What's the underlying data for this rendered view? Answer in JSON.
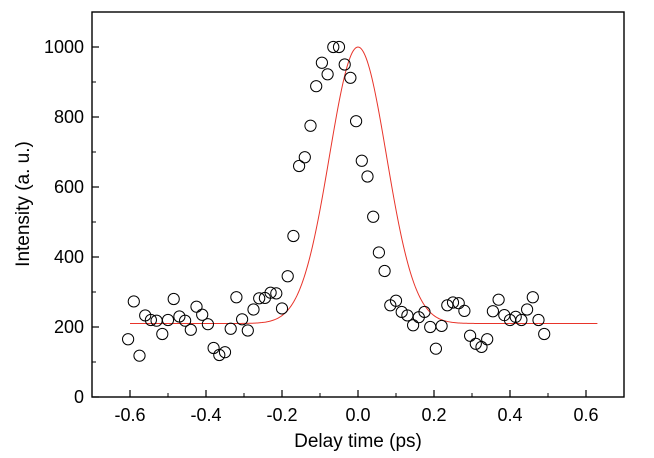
{
  "chart_data": {
    "type": "scatter",
    "xlabel": "Delay time (ps)",
    "ylabel": "Intensity (a. u.)",
    "xlim": [
      -0.7,
      0.7
    ],
    "ylim": [
      0,
      1100
    ],
    "x_ticks": [
      -0.6,
      -0.4,
      -0.2,
      0.0,
      0.2,
      0.4,
      0.6
    ],
    "x_tick_labels": [
      "-0.6",
      "-0.4",
      "-0.2",
      "0.0",
      "0.2",
      "0.4",
      "0.6"
    ],
    "y_ticks": [
      0,
      200,
      400,
      600,
      800,
      1000
    ],
    "y_tick_labels": [
      "0",
      "200",
      "400",
      "600",
      "800",
      "1000"
    ],
    "grid": false,
    "series": [
      {
        "marker": "open-circle",
        "color": "#000000",
        "points": [
          [
            -0.605,
            165
          ],
          [
            -0.59,
            273
          ],
          [
            -0.575,
            118
          ],
          [
            -0.56,
            233
          ],
          [
            -0.545,
            220
          ],
          [
            -0.53,
            218
          ],
          [
            -0.515,
            180
          ],
          [
            -0.5,
            220
          ],
          [
            -0.485,
            280
          ],
          [
            -0.47,
            230
          ],
          [
            -0.455,
            218
          ],
          [
            -0.44,
            192
          ],
          [
            -0.425,
            258
          ],
          [
            -0.41,
            235
          ],
          [
            -0.395,
            208
          ],
          [
            -0.38,
            140
          ],
          [
            -0.365,
            120
          ],
          [
            -0.35,
            128
          ],
          [
            -0.335,
            195
          ],
          [
            -0.32,
            285
          ],
          [
            -0.305,
            222
          ],
          [
            -0.29,
            190
          ],
          [
            -0.275,
            250
          ],
          [
            -0.26,
            282
          ],
          [
            -0.245,
            283
          ],
          [
            -0.23,
            298
          ],
          [
            -0.215,
            296
          ],
          [
            -0.2,
            253
          ],
          [
            -0.185,
            345
          ],
          [
            -0.17,
            460
          ],
          [
            -0.155,
            660
          ],
          [
            -0.14,
            685
          ],
          [
            -0.125,
            775
          ],
          [
            -0.11,
            888
          ],
          [
            -0.095,
            955
          ],
          [
            -0.08,
            922
          ],
          [
            -0.065,
            1000
          ],
          [
            -0.05,
            1000
          ],
          [
            -0.035,
            950
          ],
          [
            -0.02,
            912
          ],
          [
            -0.005,
            788
          ],
          [
            0.01,
            675
          ],
          [
            0.025,
            630
          ],
          [
            0.04,
            515
          ],
          [
            0.055,
            413
          ],
          [
            0.07,
            360
          ],
          [
            0.085,
            262
          ],
          [
            0.1,
            275
          ],
          [
            0.115,
            243
          ],
          [
            0.13,
            233
          ],
          [
            0.145,
            205
          ],
          [
            0.16,
            228
          ],
          [
            0.175,
            243
          ],
          [
            0.19,
            200
          ],
          [
            0.205,
            138
          ],
          [
            0.22,
            203
          ],
          [
            0.235,
            262
          ],
          [
            0.25,
            270
          ],
          [
            0.265,
            268
          ],
          [
            0.28,
            246
          ],
          [
            0.295,
            175
          ],
          [
            0.31,
            152
          ],
          [
            0.325,
            143
          ],
          [
            0.34,
            165
          ],
          [
            0.355,
            245
          ],
          [
            0.37,
            278
          ],
          [
            0.385,
            234
          ],
          [
            0.4,
            220
          ],
          [
            0.415,
            229
          ],
          [
            0.43,
            220
          ],
          [
            0.445,
            250
          ],
          [
            0.46,
            285
          ],
          [
            0.475,
            220
          ],
          [
            0.49,
            180
          ]
        ]
      },
      {
        "line": "gaussian-fit",
        "color": "#e8342a",
        "baseline": 210,
        "peak": 1000,
        "center": 0.0,
        "sigma": 0.075
      }
    ]
  }
}
